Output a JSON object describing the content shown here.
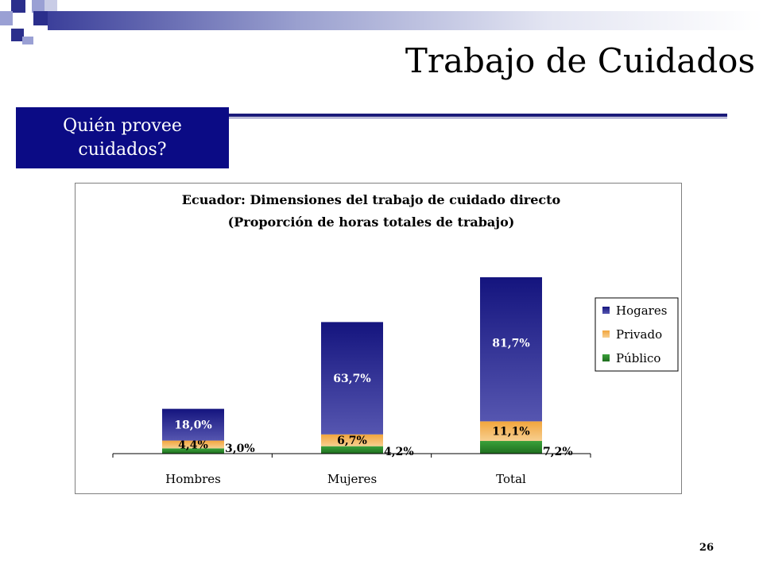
{
  "slide": {
    "title": "Trabajo de Cuidados",
    "subtitle_line1": "Quién provee",
    "subtitle_line2": "cuidados?",
    "page_number": "26"
  },
  "colors": {
    "subtitle_bg": "#0b0b85",
    "rule": "#1a1a7a",
    "decor_dark": "#2b2f8c",
    "decor_mid": "#9aa0d4"
  },
  "chart_data": {
    "type": "bar",
    "stacked": true,
    "title_line1": "Ecuador: Dimensiones del trabajo de cuidado directo",
    "title_line2": "(Proporción de horas totales de trabajo)",
    "categories": [
      "Hombres",
      "Mujeres",
      "Total"
    ],
    "series": [
      {
        "name": "Público",
        "values": [
          3.0,
          4.2,
          7.2
        ],
        "labels": [
          "3,0%",
          "4,2%",
          "7,2%"
        ],
        "color": "#2e8b2e"
      },
      {
        "name": "Privado",
        "values": [
          4.4,
          6.7,
          11.1
        ],
        "labels": [
          "4,4%",
          "6,7%",
          "11,1%"
        ],
        "color": "#f4a540"
      },
      {
        "name": "Hogares",
        "values": [
          18.0,
          63.7,
          81.7
        ],
        "labels": [
          "18,0%",
          "63,7%",
          "81,7%"
        ],
        "color": "#4b4ba8"
      }
    ],
    "legend": [
      "Hogares",
      "Privado",
      "Público"
    ],
    "legend_position": "right",
    "ylim": [
      0,
      100
    ],
    "grid": false
  }
}
